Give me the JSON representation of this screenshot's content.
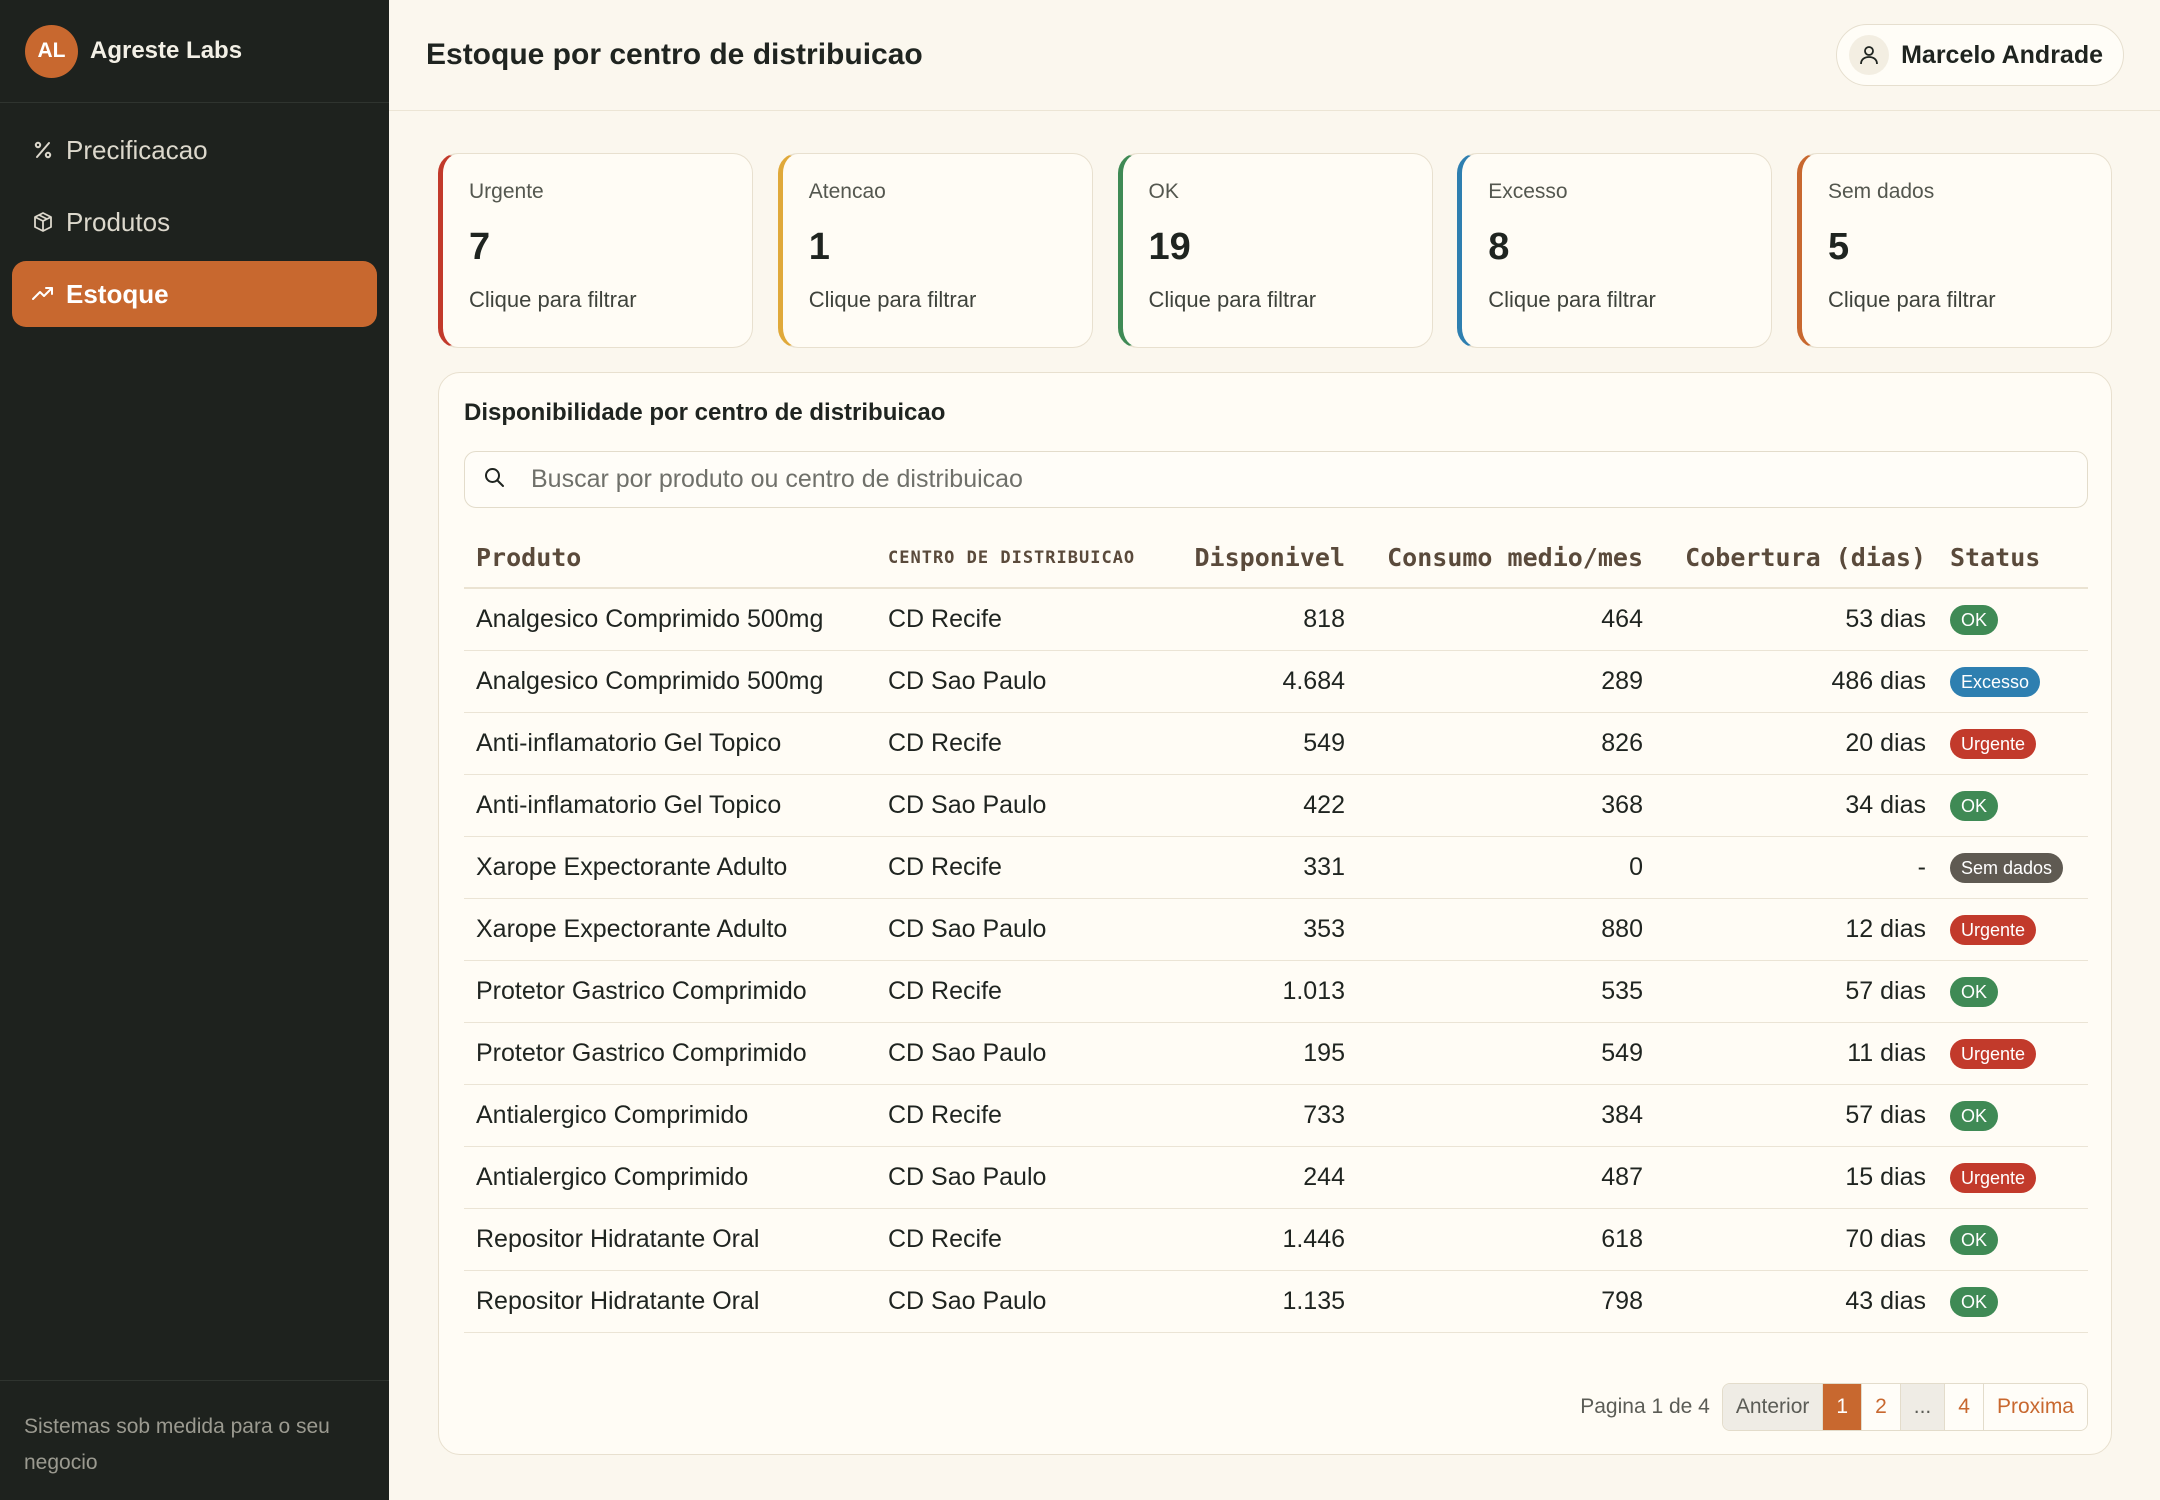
{
  "brand": {
    "initials": "AL",
    "name": "Agreste Labs"
  },
  "sidebar": {
    "items": [
      {
        "label": "Precificacao",
        "icon": "percent-icon",
        "active": false
      },
      {
        "label": "Produtos",
        "icon": "box-icon",
        "active": false
      },
      {
        "label": "Estoque",
        "icon": "trending-up-icon",
        "active": true
      }
    ],
    "footer": "Sistemas sob medida para o seu negocio"
  },
  "header": {
    "title": "Estoque por centro de distribuicao",
    "user": "Marcelo Andrade"
  },
  "cards": [
    {
      "label": "Urgente",
      "value": "7",
      "hint": "Clique para filtrar",
      "color": "#c23a2b"
    },
    {
      "label": "Atencao",
      "value": "1",
      "hint": "Clique para filtrar",
      "color": "#e0a93a"
    },
    {
      "label": "OK",
      "value": "19",
      "hint": "Clique para filtrar",
      "color": "#3f8a55"
    },
    {
      "label": "Excesso",
      "value": "8",
      "hint": "Clique para filtrar",
      "color": "#2e7fb0"
    },
    {
      "label": "Sem dados",
      "value": "5",
      "hint": "Clique para filtrar",
      "color": "#c8682f"
    }
  ],
  "panel": {
    "title": "Disponibilidade por centro de distribuicao",
    "search_placeholder": "Buscar por produto ou centro de distribuicao"
  },
  "table": {
    "columns": [
      "Produto",
      "CENTRO DE DISTRIBUICAO",
      "Disponivel",
      "Consumo medio/mes",
      "Cobertura (dias)",
      "Status"
    ],
    "rows": [
      {
        "produto": "Analgesico Comprimido 500mg",
        "centro": "CD Recife",
        "disponivel": "818",
        "consumo": "464",
        "cobertura": "53 dias",
        "status": "OK"
      },
      {
        "produto": "Analgesico Comprimido 500mg",
        "centro": "CD Sao Paulo",
        "disponivel": "4.684",
        "consumo": "289",
        "cobertura": "486 dias",
        "status": "Excesso"
      },
      {
        "produto": "Anti-inflamatorio Gel Topico",
        "centro": "CD Recife",
        "disponivel": "549",
        "consumo": "826",
        "cobertura": "20 dias",
        "status": "Urgente"
      },
      {
        "produto": "Anti-inflamatorio Gel Topico",
        "centro": "CD Sao Paulo",
        "disponivel": "422",
        "consumo": "368",
        "cobertura": "34 dias",
        "status": "OK"
      },
      {
        "produto": "Xarope Expectorante Adulto",
        "centro": "CD Recife",
        "disponivel": "331",
        "consumo": "0",
        "cobertura": "-",
        "status": "Sem dados"
      },
      {
        "produto": "Xarope Expectorante Adulto",
        "centro": "CD Sao Paulo",
        "disponivel": "353",
        "consumo": "880",
        "cobertura": "12 dias",
        "status": "Urgente"
      },
      {
        "produto": "Protetor Gastrico Comprimido",
        "centro": "CD Recife",
        "disponivel": "1.013",
        "consumo": "535",
        "cobertura": "57 dias",
        "status": "OK"
      },
      {
        "produto": "Protetor Gastrico Comprimido",
        "centro": "CD Sao Paulo",
        "disponivel": "195",
        "consumo": "549",
        "cobertura": "11 dias",
        "status": "Urgente"
      },
      {
        "produto": "Antialergico Comprimido",
        "centro": "CD Recife",
        "disponivel": "733",
        "consumo": "384",
        "cobertura": "57 dias",
        "status": "OK"
      },
      {
        "produto": "Antialergico Comprimido",
        "centro": "CD Sao Paulo",
        "disponivel": "244",
        "consumo": "487",
        "cobertura": "15 dias",
        "status": "Urgente"
      },
      {
        "produto": "Repositor Hidratante Oral",
        "centro": "CD Recife",
        "disponivel": "1.446",
        "consumo": "618",
        "cobertura": "70 dias",
        "status": "OK"
      },
      {
        "produto": "Repositor Hidratante Oral",
        "centro": "CD Sao Paulo",
        "disponivel": "1.135",
        "consumo": "798",
        "cobertura": "43 dias",
        "status": "OK"
      }
    ],
    "status_colors": {
      "OK": "#3f8a55",
      "Excesso": "#2e7fb0",
      "Urgente": "#c23a2b",
      "Sem dados": "#5f5a52"
    }
  },
  "pagination": {
    "info": "Pagina 1 de 4",
    "prev": "Anterior",
    "pages": [
      "1",
      "2",
      "...",
      "4"
    ],
    "current": "1",
    "next": "Proxima"
  }
}
